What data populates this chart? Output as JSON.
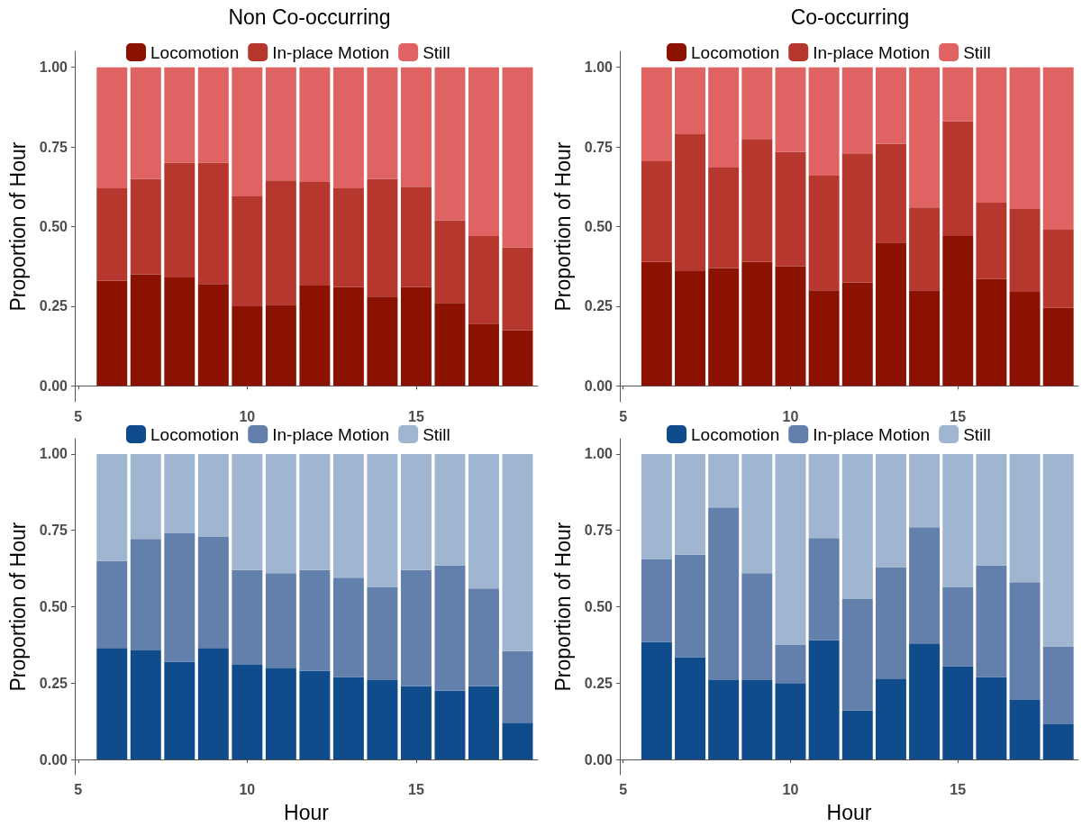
{
  "chart_data": [
    {
      "type": "bar",
      "title": "Non Co-occurring",
      "ylabel": "Proportion of Hour",
      "x": [
        6,
        7,
        8,
        9,
        10,
        11,
        12,
        13,
        14,
        15,
        16,
        17,
        18
      ],
      "stacked": true,
      "legend": "top",
      "grid": false,
      "xlim": [
        4.9,
        18.6
      ],
      "ylim": [
        -0.05,
        1.05
      ],
      "xticks": [
        5,
        10,
        15
      ],
      "yticks": [
        {
          "value": 0,
          "label": "0.00"
        },
        {
          "value": 0.25,
          "label": "0.25"
        },
        {
          "value": 0.5,
          "label": "0.50"
        },
        {
          "value": 0.75,
          "label": "0.75"
        },
        {
          "value": 1,
          "label": "1.00"
        }
      ],
      "series": [
        {
          "name": "Locomotion",
          "color": "#8b1100",
          "values": [
            0.33,
            0.35,
            0.34,
            0.32,
            0.25,
            0.255,
            0.315,
            0.31,
            0.28,
            0.31,
            0.26,
            0.195,
            0.175
          ]
        },
        {
          "name": "In-place Motion",
          "color": "#b5372e",
          "values": [
            0.29,
            0.3,
            0.36,
            0.38,
            0.345,
            0.39,
            0.325,
            0.31,
            0.37,
            0.315,
            0.26,
            0.275,
            0.26
          ]
        },
        {
          "name": "Still",
          "color": "#e06363",
          "values": [
            0.38,
            0.35,
            0.3,
            0.3,
            0.405,
            0.355,
            0.36,
            0.38,
            0.35,
            0.375,
            0.48,
            0.53,
            0.565
          ]
        }
      ]
    },
    {
      "type": "bar",
      "title": "Co-occurring",
      "ylabel": "Proportion of Hour",
      "x": [
        6,
        7,
        8,
        9,
        10,
        11,
        12,
        13,
        14,
        15,
        16,
        17,
        18
      ],
      "stacked": true,
      "legend": "top",
      "grid": false,
      "xlim": [
        4.9,
        18.6
      ],
      "ylim": [
        -0.05,
        1.05
      ],
      "xticks": [
        5,
        10,
        15
      ],
      "yticks": [
        {
          "value": 0,
          "label": "0.00"
        },
        {
          "value": 0.25,
          "label": "0.25"
        },
        {
          "value": 0.5,
          "label": "0.50"
        },
        {
          "value": 0.75,
          "label": "0.75"
        },
        {
          "value": 1,
          "label": "1.00"
        }
      ],
      "series": [
        {
          "name": "Locomotion",
          "color": "#8b1100",
          "values": [
            0.39,
            0.36,
            0.37,
            0.39,
            0.375,
            0.3,
            0.325,
            0.45,
            0.3,
            0.47,
            0.335,
            0.295,
            0.245
          ]
        },
        {
          "name": "In-place Motion",
          "color": "#b5372e",
          "values": [
            0.315,
            0.43,
            0.315,
            0.385,
            0.36,
            0.36,
            0.405,
            0.31,
            0.26,
            0.36,
            0.24,
            0.26,
            0.245
          ]
        },
        {
          "name": "Still",
          "color": "#e06363",
          "values": [
            0.295,
            0.21,
            0.315,
            0.225,
            0.265,
            0.34,
            0.27,
            0.24,
            0.44,
            0.17,
            0.425,
            0.445,
            0.51
          ]
        }
      ]
    },
    {
      "type": "bar",
      "xlabel": "Hour",
      "ylabel": "Proportion of Hour",
      "x": [
        6,
        7,
        8,
        9,
        10,
        11,
        12,
        13,
        14,
        15,
        16,
        17,
        18
      ],
      "stacked": true,
      "legend": "top",
      "grid": false,
      "xlim": [
        4.9,
        18.6
      ],
      "ylim": [
        -0.05,
        1.05
      ],
      "xticks": [
        5,
        10,
        15
      ],
      "yticks": [
        {
          "value": 0,
          "label": "0.00"
        },
        {
          "value": 0.25,
          "label": "0.25"
        },
        {
          "value": 0.5,
          "label": "0.50"
        },
        {
          "value": 0.75,
          "label": "0.75"
        },
        {
          "value": 1,
          "label": "1.00"
        }
      ],
      "series": [
        {
          "name": "Locomotion",
          "color": "#104c8b",
          "values": [
            0.365,
            0.357,
            0.32,
            0.365,
            0.31,
            0.3,
            0.29,
            0.27,
            0.26,
            0.24,
            0.225,
            0.24,
            0.12
          ]
        },
        {
          "name": "In-place Motion",
          "color": "#6380ad",
          "values": [
            0.285,
            0.365,
            0.42,
            0.365,
            0.31,
            0.31,
            0.33,
            0.325,
            0.305,
            0.38,
            0.41,
            0.32,
            0.235
          ]
        },
        {
          "name": "Still",
          "color": "#a0b5cf",
          "values": [
            0.35,
            0.278,
            0.26,
            0.27,
            0.38,
            0.39,
            0.38,
            0.405,
            0.435,
            0.38,
            0.365,
            0.44,
            0.645
          ]
        }
      ]
    },
    {
      "type": "bar",
      "xlabel": "Hour",
      "ylabel": "Proportion of Hour",
      "x": [
        6,
        7,
        8,
        9,
        10,
        11,
        12,
        13,
        14,
        15,
        16,
        17,
        18
      ],
      "stacked": true,
      "legend": "top",
      "grid": false,
      "xlim": [
        4.9,
        18.6
      ],
      "ylim": [
        -0.05,
        1.05
      ],
      "xticks": [
        5,
        10,
        15
      ],
      "yticks": [
        {
          "value": 0,
          "label": "0.00"
        },
        {
          "value": 0.25,
          "label": "0.25"
        },
        {
          "value": 0.5,
          "label": "0.50"
        },
        {
          "value": 0.75,
          "label": "0.75"
        },
        {
          "value": 1,
          "label": "1.00"
        }
      ],
      "series": [
        {
          "name": "Locomotion",
          "color": "#104c8b",
          "values": [
            0.385,
            0.335,
            0.26,
            0.26,
            0.25,
            0.39,
            0.16,
            0.265,
            0.38,
            0.305,
            0.27,
            0.195,
            0.115
          ]
        },
        {
          "name": "In-place Motion",
          "color": "#6380ad",
          "values": [
            0.27,
            0.335,
            0.565,
            0.35,
            0.125,
            0.335,
            0.365,
            0.365,
            0.38,
            0.26,
            0.365,
            0.385,
            0.255
          ]
        },
        {
          "name": "Still",
          "color": "#a0b5cf",
          "values": [
            0.345,
            0.33,
            0.175,
            0.39,
            0.625,
            0.275,
            0.475,
            0.37,
            0.24,
            0.435,
            0.365,
            0.42,
            0.63
          ]
        }
      ]
    }
  ]
}
